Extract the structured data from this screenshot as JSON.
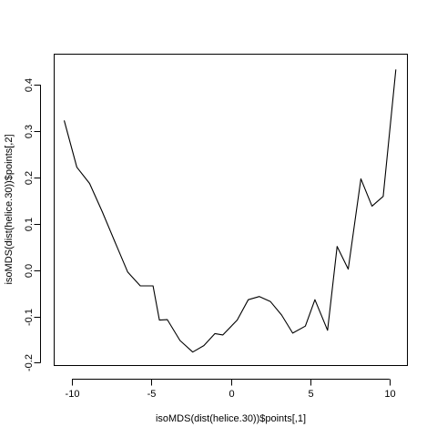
{
  "chart_data": {
    "type": "line",
    "xlabel": "isoMDS(dist(helice.30))$points[,1]",
    "ylabel": "isoMDS(dist(helice.30))$points[,2]",
    "xlim": [
      -11.1,
      11.1
    ],
    "ylim": [
      -0.205,
      0.465
    ],
    "x_ticks": [
      -10,
      -5,
      0,
      5,
      10
    ],
    "x_tick_labels": [
      "-10",
      "-5",
      "0",
      "5",
      "10"
    ],
    "y_ticks": [
      -0.2,
      -0.1,
      0.0,
      0.1,
      0.2,
      0.3,
      0.4
    ],
    "y_tick_labels": [
      "-0.2",
      "-0.1",
      "0.0",
      "0.1",
      "0.2",
      "0.3",
      "0.4"
    ],
    "grid": false,
    "series": [
      {
        "color": "#000000",
        "x": [
          -10.5,
          -9.7,
          -8.9,
          -8.1,
          -7.3,
          -6.5,
          -5.7,
          -4.9,
          -4.5,
          -4.0,
          -3.2,
          -2.4,
          -1.7,
          -1.0,
          -0.5,
          0.4,
          1.1,
          1.8,
          2.5,
          3.2,
          3.9,
          4.7,
          5.3,
          6.1,
          6.7,
          7.4,
          8.2,
          8.9,
          9.6,
          10.4
        ],
        "y": [
          0.323,
          0.222,
          0.187,
          0.126,
          0.061,
          -0.004,
          -0.034,
          -0.034,
          -0.108,
          -0.107,
          -0.152,
          -0.177,
          -0.163,
          -0.137,
          -0.14,
          -0.108,
          -0.064,
          -0.057,
          -0.068,
          -0.097,
          -0.136,
          -0.121,
          -0.064,
          -0.13,
          0.051,
          0.002,
          0.197,
          0.138,
          0.159,
          0.433
        ]
      }
    ]
  }
}
